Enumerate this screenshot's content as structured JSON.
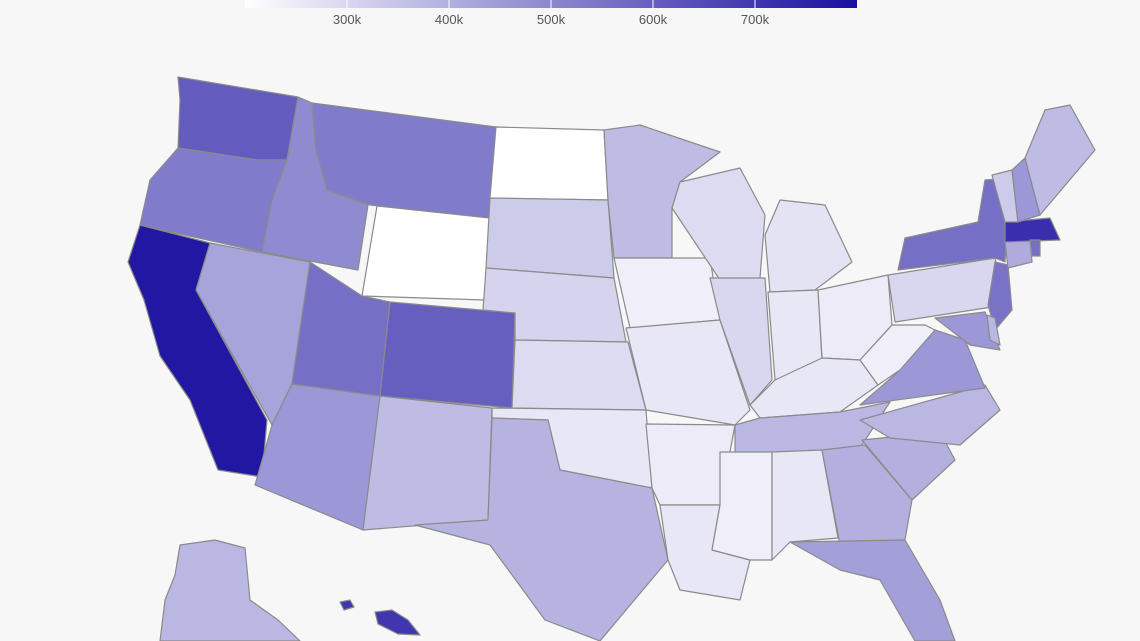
{
  "legend": {
    "ticks": [
      "300k",
      "400k",
      "500k",
      "600k",
      "700k"
    ],
    "tick_values": [
      300000,
      400000,
      500000,
      600000,
      700000
    ],
    "scale_min": 200000,
    "scale_max": 800000,
    "color_low": "#ffffff",
    "color_high": "#1a0fa0"
  },
  "chart_data": {
    "type": "choropleth",
    "title": "",
    "region": "United States",
    "states": [
      {
        "name": "California",
        "value": 780000
      },
      {
        "name": "Washington",
        "value": 610000
      },
      {
        "name": "Oregon",
        "value": 530000
      },
      {
        "name": "Idaho",
        "value": 490000
      },
      {
        "name": "Montana",
        "value": 530000
      },
      {
        "name": "Wyoming",
        "value": 200000
      },
      {
        "name": "Nevada",
        "value": 430000
      },
      {
        "name": "Utah",
        "value": 560000
      },
      {
        "name": "Colorado",
        "value": 600000
      },
      {
        "name": "Arizona",
        "value": 460000
      },
      {
        "name": "New Mexico",
        "value": 370000
      },
      {
        "name": "North Dakota",
        "value": 200000
      },
      {
        "name": "South Dakota",
        "value": 330000
      },
      {
        "name": "Nebraska",
        "value": 310000
      },
      {
        "name": "Kansas",
        "value": 290000
      },
      {
        "name": "Oklahoma",
        "value": 260000
      },
      {
        "name": "Texas",
        "value": 390000
      },
      {
        "name": "Minnesota",
        "value": 370000
      },
      {
        "name": "Iowa",
        "value": 240000
      },
      {
        "name": "Missouri",
        "value": 260000
      },
      {
        "name": "Arkansas",
        "value": 250000
      },
      {
        "name": "Louisiana",
        "value": 260000
      },
      {
        "name": "Wisconsin",
        "value": 290000
      },
      {
        "name": "Illinois",
        "value": 300000
      },
      {
        "name": "Michigan",
        "value": 270000
      },
      {
        "name": "Indiana",
        "value": 260000
      },
      {
        "name": "Ohio",
        "value": 250000
      },
      {
        "name": "Kentucky",
        "value": 260000
      },
      {
        "name": "Tennessee",
        "value": 380000
      },
      {
        "name": "Mississippi",
        "value": 240000
      },
      {
        "name": "Alabama",
        "value": 260000
      },
      {
        "name": "Georgia",
        "value": 400000
      },
      {
        "name": "Florida",
        "value": 440000
      },
      {
        "name": "South Carolina",
        "value": 400000
      },
      {
        "name": "North Carolina",
        "value": 380000
      },
      {
        "name": "Virginia",
        "value": 460000
      },
      {
        "name": "West Virginia",
        "value": 240000
      },
      {
        "name": "Pennsylvania",
        "value": 300000
      },
      {
        "name": "New York",
        "value": 560000
      },
      {
        "name": "New Jersey",
        "value": 550000
      },
      {
        "name": "Maryland",
        "value": 460000
      },
      {
        "name": "Delaware",
        "value": 380000
      },
      {
        "name": "Connecticut",
        "value": 410000
      },
      {
        "name": "Massachusetts",
        "value": 720000
      },
      {
        "name": "Rhode Island",
        "value": 560000
      },
      {
        "name": "Vermont",
        "value": 330000
      },
      {
        "name": "New Hampshire",
        "value": 460000
      },
      {
        "name": "Maine",
        "value": 370000
      },
      {
        "name": "Alaska",
        "value": 380000
      },
      {
        "name": "Hawaii",
        "value": 700000
      }
    ]
  }
}
